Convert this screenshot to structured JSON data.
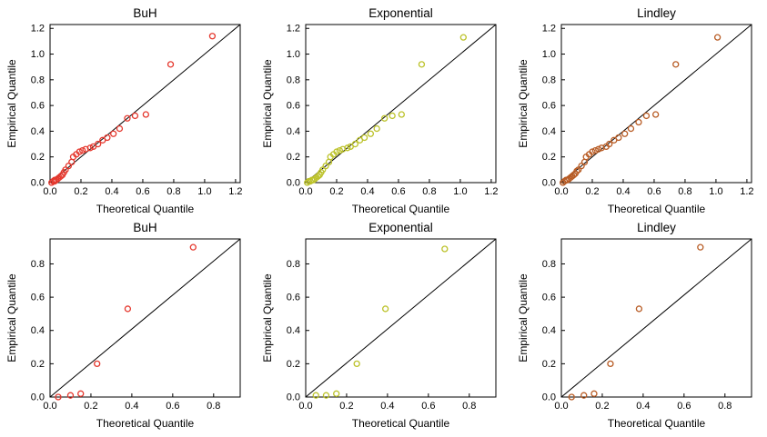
{
  "figure": {
    "background": "#ffffff",
    "rows": 2,
    "cols": 3
  },
  "chart_data": [
    {
      "type": "scatter",
      "title": "BuH",
      "xlabel": "Theoretical Quantile",
      "ylabel": "Empirical Quantile",
      "xlim": [
        0,
        1.23
      ],
      "ylim": [
        0,
        1.23
      ],
      "xticks": [
        0.0,
        0.2,
        0.4,
        0.6,
        0.8,
        1.0,
        1.2
      ],
      "yticks": [
        0.0,
        0.2,
        0.4,
        0.6,
        0.8,
        1.0,
        1.2
      ],
      "grid": false,
      "point_color": "#e5392f",
      "reference_line": {
        "from": [
          0,
          0
        ],
        "to": [
          1.23,
          1.23
        ],
        "color": "#000000"
      },
      "points": [
        [
          0.01,
          0.0
        ],
        [
          0.02,
          0.01
        ],
        [
          0.03,
          0.01
        ],
        [
          0.03,
          0.02
        ],
        [
          0.04,
          0.02
        ],
        [
          0.05,
          0.03
        ],
        [
          0.06,
          0.04
        ],
        [
          0.07,
          0.05
        ],
        [
          0.08,
          0.06
        ],
        [
          0.09,
          0.08
        ],
        [
          0.1,
          0.1
        ],
        [
          0.12,
          0.13
        ],
        [
          0.14,
          0.16
        ],
        [
          0.15,
          0.2
        ],
        [
          0.17,
          0.22
        ],
        [
          0.19,
          0.24
        ],
        [
          0.21,
          0.25
        ],
        [
          0.23,
          0.26
        ],
        [
          0.26,
          0.27
        ],
        [
          0.28,
          0.28
        ],
        [
          0.31,
          0.3
        ],
        [
          0.34,
          0.33
        ],
        [
          0.37,
          0.35
        ],
        [
          0.41,
          0.38
        ],
        [
          0.45,
          0.42
        ],
        [
          0.5,
          0.5
        ],
        [
          0.55,
          0.52
        ],
        [
          0.62,
          0.53
        ],
        [
          0.78,
          0.92
        ],
        [
          1.05,
          1.14
        ]
      ]
    },
    {
      "type": "scatter",
      "title": "Exponential",
      "xlabel": "Theoretical Quantile",
      "ylabel": "Empirical Quantile",
      "xlim": [
        0,
        1.23
      ],
      "ylim": [
        0,
        1.23
      ],
      "xticks": [
        0.0,
        0.2,
        0.4,
        0.6,
        0.8,
        1.0,
        1.2
      ],
      "yticks": [
        0.0,
        0.2,
        0.4,
        0.6,
        0.8,
        1.0,
        1.2
      ],
      "grid": false,
      "point_color": "#bcc22a",
      "reference_line": {
        "from": [
          0,
          0
        ],
        "to": [
          1.23,
          1.23
        ],
        "color": "#000000"
      },
      "points": [
        [
          0.01,
          0.0
        ],
        [
          0.02,
          0.01
        ],
        [
          0.03,
          0.01
        ],
        [
          0.04,
          0.02
        ],
        [
          0.05,
          0.02
        ],
        [
          0.06,
          0.03
        ],
        [
          0.07,
          0.04
        ],
        [
          0.08,
          0.05
        ],
        [
          0.09,
          0.06
        ],
        [
          0.1,
          0.08
        ],
        [
          0.11,
          0.1
        ],
        [
          0.13,
          0.13
        ],
        [
          0.15,
          0.16
        ],
        [
          0.16,
          0.2
        ],
        [
          0.18,
          0.22
        ],
        [
          0.2,
          0.24
        ],
        [
          0.22,
          0.25
        ],
        [
          0.24,
          0.26
        ],
        [
          0.27,
          0.27
        ],
        [
          0.29,
          0.28
        ],
        [
          0.32,
          0.3
        ],
        [
          0.35,
          0.33
        ],
        [
          0.38,
          0.35
        ],
        [
          0.42,
          0.38
        ],
        [
          0.46,
          0.42
        ],
        [
          0.51,
          0.5
        ],
        [
          0.56,
          0.52
        ],
        [
          0.62,
          0.53
        ],
        [
          0.75,
          0.92
        ],
        [
          1.02,
          1.13
        ]
      ]
    },
    {
      "type": "scatter",
      "title": "Lindley",
      "xlabel": "Theoretical Quantile",
      "ylabel": "Empirical Quantile",
      "xlim": [
        0,
        1.23
      ],
      "ylim": [
        0,
        1.23
      ],
      "xticks": [
        0.0,
        0.2,
        0.4,
        0.6,
        0.8,
        1.0,
        1.2
      ],
      "yticks": [
        0.0,
        0.2,
        0.4,
        0.6,
        0.8,
        1.0,
        1.2
      ],
      "grid": false,
      "point_color": "#b85c25",
      "reference_line": {
        "from": [
          0,
          0
        ],
        "to": [
          1.23,
          1.23
        ],
        "color": "#000000"
      },
      "points": [
        [
          0.01,
          0.0
        ],
        [
          0.02,
          0.01
        ],
        [
          0.03,
          0.02
        ],
        [
          0.04,
          0.02
        ],
        [
          0.05,
          0.03
        ],
        [
          0.06,
          0.04
        ],
        [
          0.07,
          0.05
        ],
        [
          0.08,
          0.06
        ],
        [
          0.09,
          0.07
        ],
        [
          0.1,
          0.09
        ],
        [
          0.11,
          0.1
        ],
        [
          0.13,
          0.13
        ],
        [
          0.15,
          0.16
        ],
        [
          0.16,
          0.2
        ],
        [
          0.18,
          0.22
        ],
        [
          0.2,
          0.24
        ],
        [
          0.22,
          0.25
        ],
        [
          0.24,
          0.26
        ],
        [
          0.26,
          0.27
        ],
        [
          0.29,
          0.28
        ],
        [
          0.31,
          0.3
        ],
        [
          0.34,
          0.33
        ],
        [
          0.37,
          0.35
        ],
        [
          0.41,
          0.38
        ],
        [
          0.45,
          0.42
        ],
        [
          0.5,
          0.47
        ],
        [
          0.55,
          0.52
        ],
        [
          0.61,
          0.53
        ],
        [
          0.74,
          0.92
        ],
        [
          1.01,
          1.13
        ]
      ]
    },
    {
      "type": "scatter",
      "title": "BuH",
      "xlabel": "Theoretical Quantile",
      "ylabel": "Empirical Quantile",
      "xlim": [
        0,
        0.93
      ],
      "ylim": [
        0,
        0.95
      ],
      "xticks": [
        0.0,
        0.2,
        0.4,
        0.6,
        0.8
      ],
      "yticks": [
        0.0,
        0.2,
        0.4,
        0.6,
        0.8
      ],
      "grid": false,
      "point_color": "#e5392f",
      "reference_line": {
        "from": [
          0,
          0
        ],
        "to": [
          0.93,
          0.95
        ],
        "color": "#000000"
      },
      "points": [
        [
          0.04,
          0.0
        ],
        [
          0.1,
          0.01
        ],
        [
          0.15,
          0.02
        ],
        [
          0.23,
          0.2
        ],
        [
          0.38,
          0.53
        ],
        [
          0.7,
          0.9
        ]
      ]
    },
    {
      "type": "scatter",
      "title": "Exponential",
      "xlabel": "Theoretical Quantile",
      "ylabel": "Empirical Quantile",
      "xlim": [
        0,
        0.93
      ],
      "ylim": [
        0,
        0.95
      ],
      "xticks": [
        0.0,
        0.2,
        0.4,
        0.6,
        0.8
      ],
      "yticks": [
        0.0,
        0.2,
        0.4,
        0.6,
        0.8
      ],
      "grid": false,
      "point_color": "#bcc22a",
      "reference_line": {
        "from": [
          0,
          0
        ],
        "to": [
          0.93,
          0.95
        ],
        "color": "#000000"
      },
      "points": [
        [
          0.05,
          0.01
        ],
        [
          0.1,
          0.01
        ],
        [
          0.15,
          0.02
        ],
        [
          0.25,
          0.2
        ],
        [
          0.39,
          0.53
        ],
        [
          0.68,
          0.89
        ]
      ]
    },
    {
      "type": "scatter",
      "title": "Lindley",
      "xlabel": "Theoretical Quantile",
      "ylabel": "Empirical Quantile",
      "xlim": [
        0,
        0.93
      ],
      "ylim": [
        0,
        0.95
      ],
      "xticks": [
        0.0,
        0.2,
        0.4,
        0.6,
        0.8
      ],
      "yticks": [
        0.0,
        0.2,
        0.4,
        0.6,
        0.8
      ],
      "grid": false,
      "point_color": "#b85c25",
      "reference_line": {
        "from": [
          0,
          0
        ],
        "to": [
          0.93,
          0.95
        ],
        "color": "#000000"
      },
      "points": [
        [
          0.05,
          0.0
        ],
        [
          0.11,
          0.01
        ],
        [
          0.16,
          0.02
        ],
        [
          0.24,
          0.2
        ],
        [
          0.38,
          0.53
        ],
        [
          0.68,
          0.9
        ]
      ]
    }
  ]
}
